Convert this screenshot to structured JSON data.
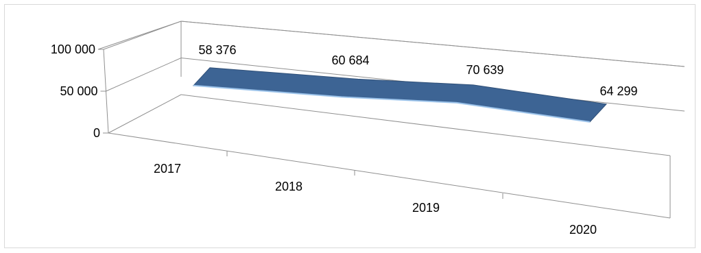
{
  "chart_data": {
    "type": "area",
    "view": "3d-perspective",
    "categories": [
      "2017",
      "2018",
      "2019",
      "2020"
    ],
    "values": [
      58376,
      60684,
      70639,
      64299
    ],
    "data_labels": [
      "58 376",
      "60 684",
      "70 639",
      "64 299"
    ],
    "y_ticks": [
      "0",
      "50 000",
      "100 000"
    ],
    "ylim": [
      0,
      100000
    ],
    "title": "",
    "xlabel": "",
    "ylabel": "",
    "grid": true,
    "legend": "none",
    "series_color": "#3d6494",
    "series_edge_color": "#9cc3ea"
  }
}
